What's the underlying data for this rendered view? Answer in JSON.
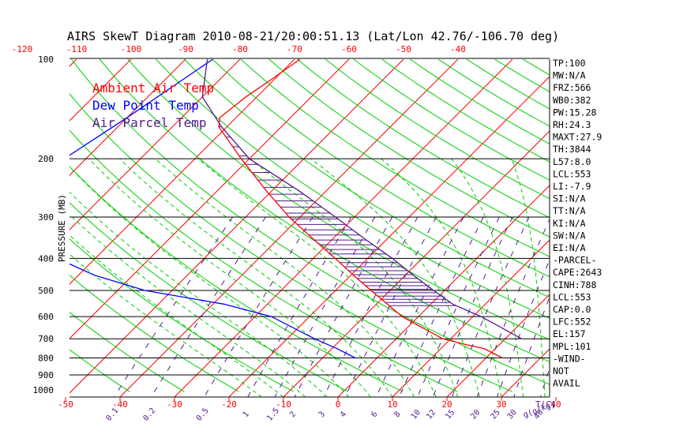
{
  "chart_data": {
    "type": "line",
    "title": "AIRS SkewT Diagram 2010-08-21/20:00:51.13 (Lat/Lon 42.76/-106.70 deg)",
    "ylabel": "PRESSURE (MB)",
    "xlabel": "T(C)",
    "mixing_ratio_label": "g(g/kg)",
    "pressure_ticks": [
      100,
      200,
      300,
      400,
      500,
      600,
      700,
      800,
      900,
      1000
    ],
    "bottom_temp_ticks": [
      "-50",
      "-40",
      "-30",
      "-20",
      "-10",
      "0",
      "10",
      "20",
      "30",
      "40"
    ],
    "top_temp_ticks": [
      "-120",
      "-110",
      "-100",
      "-90",
      "-80",
      "-70",
      "-60",
      "-50",
      "-40"
    ],
    "mixing_ratio_ticks": [
      "0.1",
      "0.2",
      "0.5",
      "1",
      "1.5",
      "2",
      "3",
      "4",
      "6",
      "8",
      "10",
      "12",
      "15",
      "20",
      "25",
      "30",
      "40"
    ],
    "legend": [
      {
        "name": "Ambient Air Temp",
        "color": "#ff0000"
      },
      {
        "name": "Dew Point Temp",
        "color": "#0000ff"
      },
      {
        "name": "Air Parcel Temp",
        "color": "#551a8b"
      }
    ],
    "series": [
      {
        "name": "Ambient Air Temp",
        "color": "#ff0000",
        "points": [
          [
            100,
            -69
          ],
          [
            115,
            -70.5
          ],
          [
            130,
            -72
          ],
          [
            150,
            -73
          ],
          [
            160,
            -71.5
          ],
          [
            200,
            -61.5
          ],
          [
            250,
            -51
          ],
          [
            300,
            -42
          ],
          [
            350,
            -33.5
          ],
          [
            400,
            -26
          ],
          [
            450,
            -19.5
          ],
          [
            500,
            -13.5
          ],
          [
            550,
            -8
          ],
          [
            600,
            -3
          ],
          [
            650,
            3
          ],
          [
            700,
            8.5
          ],
          [
            730,
            14
          ],
          [
            750,
            18
          ],
          [
            800,
            23
          ]
        ]
      },
      {
        "name": "Dew Point Temp",
        "color": "#0000ff",
        "points": [
          [
            100,
            -85
          ],
          [
            150,
            -90
          ],
          [
            200,
            -94
          ],
          [
            250,
            -92
          ],
          [
            300,
            -86
          ],
          [
            400,
            -77
          ],
          [
            450,
            -67
          ],
          [
            500,
            -55
          ],
          [
            550,
            -38
          ],
          [
            600,
            -27
          ],
          [
            700,
            -15
          ],
          [
            750,
            -9
          ],
          [
            800,
            -4
          ]
        ]
      },
      {
        "name": "Air Parcel Temp",
        "color": "#551a8b",
        "points": [
          [
            100,
            -86
          ],
          [
            130,
            -80
          ],
          [
            160,
            -71
          ],
          [
            200,
            -60
          ],
          [
            250,
            -45
          ],
          [
            300,
            -33.5
          ],
          [
            350,
            -24
          ],
          [
            400,
            -15.5
          ],
          [
            450,
            -8.5
          ],
          [
            500,
            -2
          ],
          [
            550,
            4
          ],
          [
            600,
            11.5
          ],
          [
            650,
            17.5
          ],
          [
            700,
            23
          ]
        ]
      }
    ],
    "indices": [
      "TP:100",
      "MW:N/A",
      "FRZ:566",
      "WB0:382",
      "PW:15.28",
      "RH:24.3",
      "MAXT:27.9",
      "TH:3844",
      "L57:8.0",
      "LCL:553",
      "LI:-7.9",
      "SI:N/A",
      "TT:N/A",
      "KI:N/A",
      "SW:N/A",
      "EI:N/A",
      "-PARCEL-",
      "CAPE:2643",
      "CINH:788",
      "LCL:553",
      "CAP:0.0",
      "LFC:552",
      "EL:157",
      "MPL:101",
      "-WIND-",
      "NOT",
      "AVAIL"
    ],
    "colors": {
      "isotherm": "#ff0000",
      "dry_adiabat": "#00cc00",
      "moist_adiabat": "#00cc00",
      "mixing_ratio": "#551a8b",
      "axis": "#000000",
      "tick_temp": "#ff0000",
      "tick_mixing": "#551a8b"
    }
  }
}
